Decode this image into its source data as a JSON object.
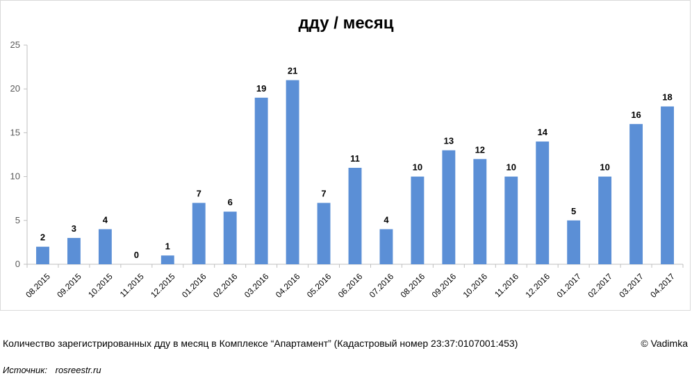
{
  "chart_data": {
    "type": "bar",
    "title": "дду / месяц",
    "xlabel": "",
    "ylabel": "",
    "ylim": [
      0,
      25
    ],
    "yticks": [
      0,
      5,
      10,
      15,
      20,
      25
    ],
    "grid": false,
    "legend": "none",
    "bar_color": "#5b8fd6",
    "categories": [
      "08.2015",
      "09.2015",
      "10.2015",
      "11.2015",
      "12.2015",
      "01.2016",
      "02.2016",
      "03.2016",
      "04.2016",
      "05.2016",
      "06.2016",
      "07.2016",
      "08.2016",
      "09.2016",
      "10.2016",
      "11.2016",
      "12.2016",
      "01.2017",
      "02.2017",
      "03.2017",
      "04.2017"
    ],
    "values": [
      2,
      3,
      4,
      0,
      1,
      7,
      6,
      19,
      21,
      7,
      11,
      4,
      10,
      13,
      12,
      10,
      14,
      5,
      10,
      16,
      18
    ],
    "data_labels": true
  },
  "footer": {
    "caption": "Количество зарегистрированных дду в месяц в Комплексе “Апартамент”  (Кадастровый номер 23:37:0107001:453)",
    "copyright": "© Vadimka",
    "source_label": "Источник:",
    "source_value": "rosreestr.ru"
  }
}
